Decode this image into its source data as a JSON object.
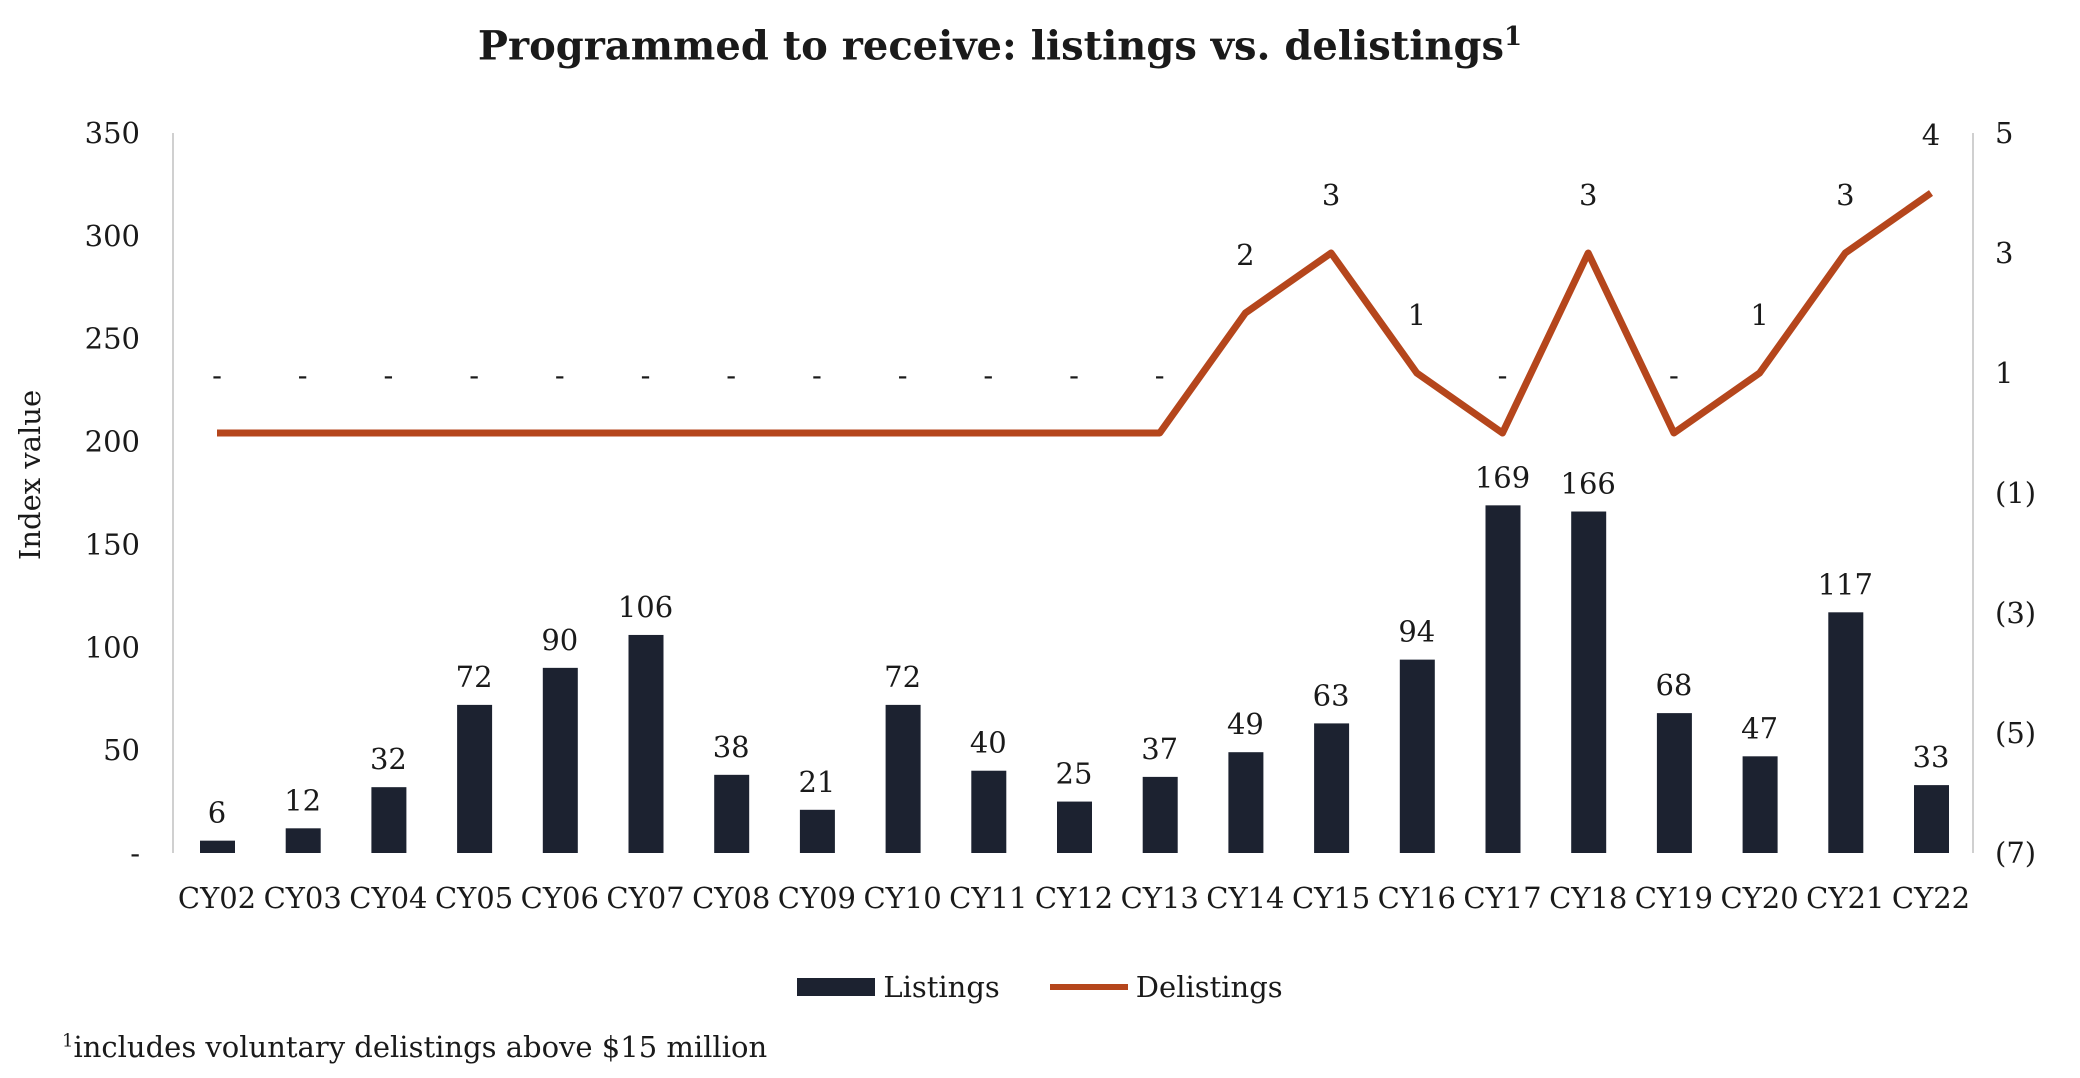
{
  "chart_data": {
    "type": "bar+line",
    "title": "Programmed to receive: listings vs. delistings",
    "title_superscript": "1",
    "ylabel": "Index value",
    "ylabel_right": "",
    "xlabel": "",
    "categories": [
      "CY02",
      "CY03",
      "CY04",
      "CY05",
      "CY06",
      "CY07",
      "CY08",
      "CY09",
      "CY10",
      "CY11",
      "CY12",
      "CY13",
      "CY14",
      "CY15",
      "CY16",
      "CY17",
      "CY18",
      "CY19",
      "CY20",
      "CY21",
      "CY22"
    ],
    "series": [
      {
        "name": "Listings",
        "type": "bar",
        "axis": "left",
        "color": "#1c2230",
        "values": [
          6,
          12,
          32,
          72,
          90,
          106,
          38,
          21,
          72,
          40,
          25,
          37,
          49,
          63,
          94,
          169,
          166,
          68,
          47,
          117,
          33
        ]
      },
      {
        "name": "Delistings",
        "type": "line",
        "axis": "right",
        "color": "#b5461c",
        "values": [
          0,
          0,
          0,
          0,
          0,
          0,
          0,
          0,
          0,
          0,
          0,
          0,
          2,
          3,
          1,
          0,
          3,
          0,
          1,
          3,
          4
        ],
        "data_labels": [
          "-",
          "-",
          "-",
          "-",
          "-",
          "-",
          "-",
          "-",
          "-",
          "-",
          "-",
          "-",
          "2",
          "3",
          "1",
          "-",
          "3",
          "-",
          "1",
          "3",
          "4"
        ]
      }
    ],
    "ylim": [
      0,
      350
    ],
    "yticks": [
      0,
      50,
      100,
      150,
      200,
      250,
      300,
      350
    ],
    "ytick_labels": [
      "-",
      "50",
      "100",
      "150",
      "200",
      "250",
      "300",
      "350"
    ],
    "ylim_right": [
      -7,
      5
    ],
    "yticks_right": [
      5,
      3,
      1,
      -1,
      -3,
      -5,
      -7
    ],
    "ytick_labels_right": [
      "5",
      "3",
      "1",
      "(1)",
      "(3)",
      "(5)",
      "(7)"
    ],
    "grid": false,
    "legend_position": "bottom",
    "footnote_marker": "1",
    "footnote": "includes voluntary delistings above $15 million"
  }
}
